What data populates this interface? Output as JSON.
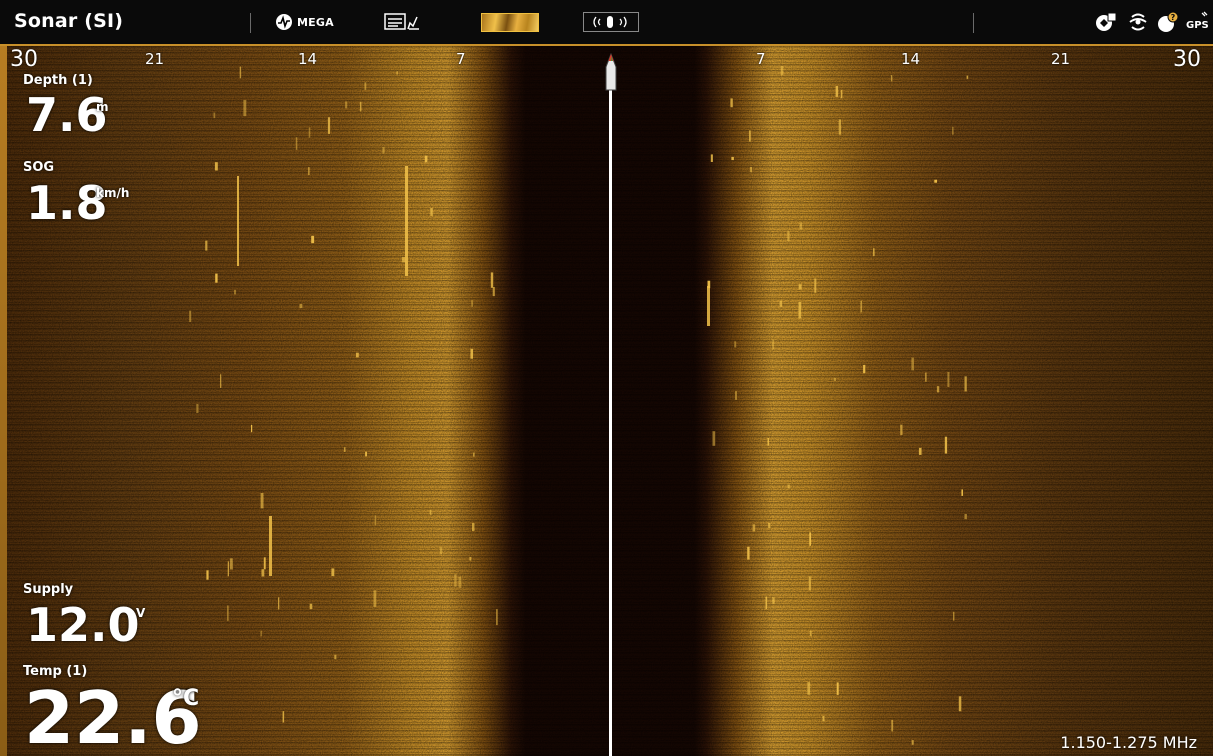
{
  "header": {
    "title": "Sonar (SI)",
    "mega_label": "MEGA"
  },
  "range_scale": {
    "left": [
      "30",
      "21",
      "14",
      "7"
    ],
    "right": [
      "7",
      "14",
      "21",
      "30"
    ]
  },
  "readouts": [
    {
      "label": "Depth (1)",
      "value": "7.6",
      "unit": "m"
    },
    {
      "label": "SOG",
      "value": "1.8",
      "unit": "km/h"
    },
    {
      "label": "Supply",
      "value": "12.0",
      "unit": "V"
    },
    {
      "label": "Temp (1)",
      "value": "22.6",
      "unit": "°C"
    }
  ],
  "frequency": "1.150-1.275 MHz",
  "status_icons": [
    "waypoint-icon",
    "sonar-icon",
    "temperature-icon",
    "gps-icon"
  ],
  "colors": {
    "accent": "#c8902a",
    "sonar_bright": "#e8b040",
    "sonar_dark": "#1a0a04"
  }
}
